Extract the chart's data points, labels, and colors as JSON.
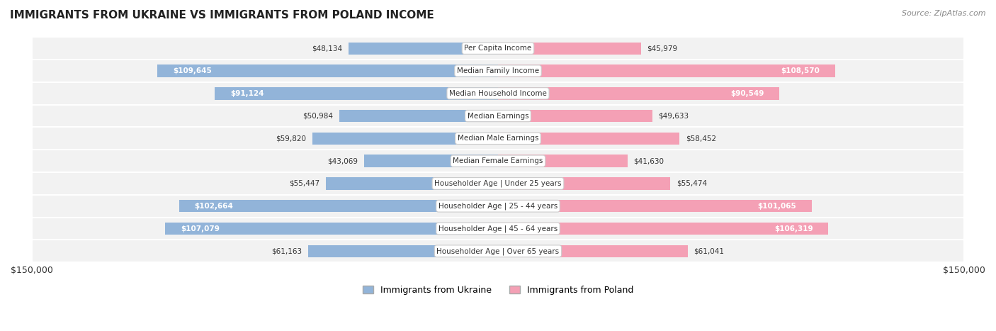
{
  "title": "IMMIGRANTS FROM UKRAINE VS IMMIGRANTS FROM POLAND INCOME",
  "source": "Source: ZipAtlas.com",
  "categories": [
    "Per Capita Income",
    "Median Family Income",
    "Median Household Income",
    "Median Earnings",
    "Median Male Earnings",
    "Median Female Earnings",
    "Householder Age | Under 25 years",
    "Householder Age | 25 - 44 years",
    "Householder Age | 45 - 64 years",
    "Householder Age | Over 65 years"
  ],
  "ukraine_values": [
    48134,
    109645,
    91124,
    50984,
    59820,
    43069,
    55447,
    102664,
    107079,
    61163
  ],
  "poland_values": [
    45979,
    108570,
    90549,
    49633,
    58452,
    41630,
    55474,
    101065,
    106319,
    61041
  ],
  "ukraine_labels": [
    "$48,134",
    "$109,645",
    "$91,124",
    "$50,984",
    "$59,820",
    "$43,069",
    "$55,447",
    "$102,664",
    "$107,079",
    "$61,163"
  ],
  "poland_labels": [
    "$45,979",
    "$108,570",
    "$90,549",
    "$49,633",
    "$58,452",
    "$41,630",
    "$55,474",
    "$101,065",
    "$106,319",
    "$61,041"
  ],
  "ukraine_color": "#92b4d9",
  "ukraine_color_dark": "#6699cc",
  "poland_color": "#f4a0b5",
  "poland_color_dark": "#ee7096",
  "max_value": 150000,
  "background_color": "#ffffff",
  "row_bg_color": "#f0f0f0",
  "label_bg_color": "#ffffff"
}
